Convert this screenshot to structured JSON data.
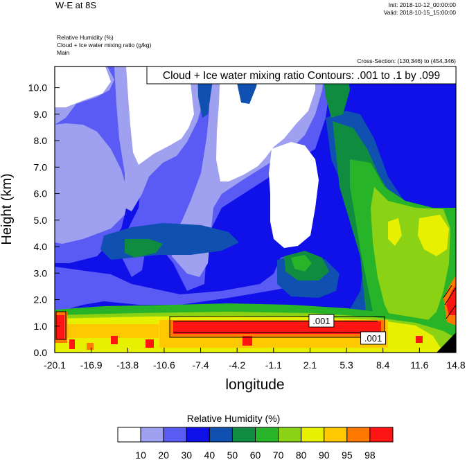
{
  "header": {
    "title": "W-E at 8S",
    "init": "Init: 2018-10-12_00:00:00",
    "valid": "Valid: 2018-10-15_15:00:00",
    "field_lines": [
      "Relative Humidity   (%)",
      "Cloud + Ice water mixing ratio   (g/kg)",
      "Main"
    ],
    "cross_section": "Cross-Section: (130,346) to (454,346)"
  },
  "chart_data": {
    "type": "heatmap",
    "contour_label": "Cloud + Ice water mixing ratio Contours: .001 to .1 by .099",
    "xlabel": "longitude",
    "ylabel": "Height (km)",
    "x_ticks": [
      "-20.1",
      "-16.9",
      "-13.8",
      "-10.6",
      "-7.4",
      "-4.2",
      "-1.1",
      "2.1",
      "5.3",
      "8.4",
      "11.6",
      "14.8"
    ],
    "y_ticks": [
      "0.0",
      "1.0",
      "2.0",
      "3.0",
      "4.0",
      "5.0",
      "6.0",
      "7.0",
      "8.0",
      "9.0",
      "10.0"
    ],
    "xlim": [
      -20.1,
      14.8
    ],
    "ylim": [
      0,
      10.8
    ],
    "contour_value_labels": [
      {
        "text": ".001",
        "x": 3.1,
        "y": 1.2
      },
      {
        "text": ".001",
        "x": 7.6,
        "y": 0.55
      }
    ],
    "colorbar": {
      "title": "Relative Humidity  (%)",
      "labels": [
        "10",
        "20",
        "30",
        "40",
        "50",
        "60",
        "70",
        "80",
        "90",
        "95",
        "98"
      ],
      "colors": [
        "#ffffff",
        "#a0a0f0",
        "#5a5af5",
        "#1010e8",
        "#1050b0",
        "#108c40",
        "#28b428",
        "#8cd214",
        "#e6f000",
        "#ffc800",
        "#ff7800",
        "#ff1414"
      ]
    }
  }
}
